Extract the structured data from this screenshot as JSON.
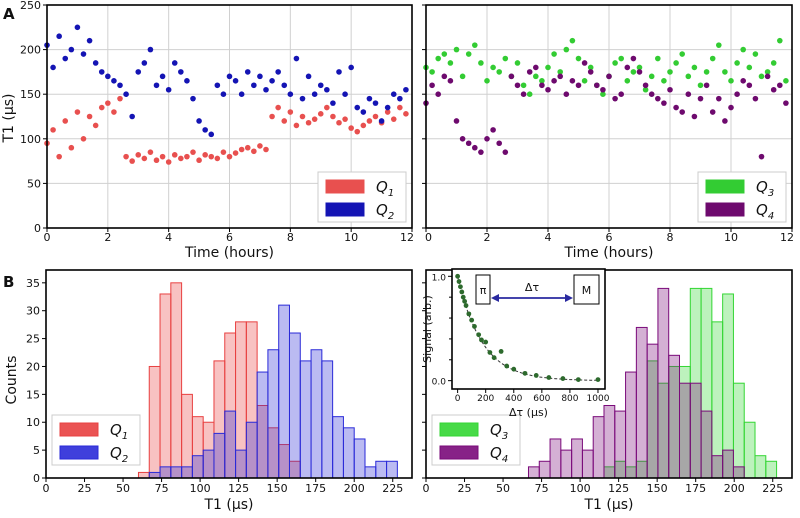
{
  "panel_labels": {
    "a": "A",
    "b": "B"
  },
  "chart_data": [
    {
      "type": "scatter",
      "panel": "A-left",
      "xlabel": "Time (hours)",
      "ylabel": "T1 (μs)",
      "xlim": [
        0,
        12
      ],
      "ylim": [
        0,
        250
      ],
      "xticks": [
        "0",
        "2",
        "4",
        "6",
        "8",
        "10",
        "12"
      ],
      "yticks": [
        "0",
        "50",
        "100",
        "150",
        "200",
        "250"
      ],
      "grid": true,
      "legend": "bottom-right",
      "time_hours": [
        0,
        0.2,
        0.4,
        0.6,
        0.8,
        1.0,
        1.2,
        1.4,
        1.6,
        1.8,
        2.0,
        2.2,
        2.4,
        2.6,
        2.8,
        3.0,
        3.2,
        3.4,
        3.6,
        3.8,
        4.0,
        4.2,
        4.4,
        4.6,
        4.8,
        5.0,
        5.2,
        5.4,
        5.6,
        5.8,
        6.0,
        6.2,
        6.4,
        6.6,
        6.8,
        7.0,
        7.2,
        7.4,
        7.6,
        7.8,
        8.0,
        8.2,
        8.4,
        8.6,
        8.8,
        9.0,
        9.2,
        9.4,
        9.6,
        9.8,
        10.0,
        10.2,
        10.4,
        10.6,
        10.8,
        11.0,
        11.2,
        11.4,
        11.6,
        11.8
      ],
      "series": [
        {
          "name": "Q1",
          "color": "#e8504f",
          "values": [
            95,
            110,
            80,
            120,
            90,
            130,
            100,
            125,
            115,
            135,
            140,
            130,
            145,
            80,
            75,
            82,
            78,
            85,
            76,
            80,
            74,
            82,
            78,
            80,
            85,
            76,
            82,
            80,
            78,
            85,
            80,
            84,
            88,
            90,
            86,
            92,
            88,
            125,
            135,
            120,
            130,
            115,
            125,
            118,
            122,
            128,
            135,
            125,
            118,
            122,
            112,
            108,
            115,
            120,
            125,
            118,
            130,
            122,
            135,
            128
          ]
        },
        {
          "name": "Q2",
          "color": "#1414b4",
          "values": [
            205,
            180,
            215,
            190,
            200,
            225,
            195,
            210,
            185,
            175,
            170,
            165,
            160,
            150,
            125,
            175,
            185,
            200,
            160,
            170,
            155,
            185,
            175,
            165,
            145,
            120,
            110,
            105,
            160,
            150,
            170,
            165,
            150,
            175,
            160,
            170,
            155,
            165,
            175,
            160,
            150,
            190,
            145,
            170,
            150,
            160,
            155,
            140,
            175,
            150,
            180,
            135,
            130,
            145,
            140,
            120,
            135,
            150,
            145,
            155
          ]
        }
      ]
    },
    {
      "type": "scatter",
      "panel": "A-right",
      "xlabel": "Time (hours)",
      "xlim": [
        0,
        12
      ],
      "ylim": [
        0,
        250
      ],
      "xticks": [
        "0",
        "2",
        "4",
        "6",
        "8",
        "10",
        "12"
      ],
      "grid": true,
      "legend": "bottom-right",
      "time_hours": [
        0,
        0.2,
        0.4,
        0.6,
        0.8,
        1.0,
        1.2,
        1.4,
        1.6,
        1.8,
        2.0,
        2.2,
        2.4,
        2.6,
        2.8,
        3.0,
        3.2,
        3.4,
        3.6,
        3.8,
        4.0,
        4.2,
        4.4,
        4.6,
        4.8,
        5.0,
        5.2,
        5.4,
        5.6,
        5.8,
        6.0,
        6.2,
        6.4,
        6.6,
        6.8,
        7.0,
        7.2,
        7.4,
        7.6,
        7.8,
        8.0,
        8.2,
        8.4,
        8.6,
        8.8,
        9.0,
        9.2,
        9.4,
        9.6,
        9.8,
        10.0,
        10.2,
        10.4,
        10.6,
        10.8,
        11.0,
        11.2,
        11.4,
        11.6,
        11.8
      ],
      "series": [
        {
          "name": "Q3",
          "color": "#33cc33",
          "values": [
            180,
            175,
            190,
            195,
            185,
            200,
            170,
            195,
            205,
            185,
            165,
            180,
            175,
            190,
            170,
            185,
            160,
            150,
            170,
            165,
            180,
            195,
            175,
            200,
            210,
            190,
            165,
            180,
            160,
            150,
            170,
            185,
            190,
            165,
            175,
            180,
            155,
            170,
            190,
            165,
            175,
            185,
            195,
            170,
            180,
            160,
            175,
            190,
            205,
            175,
            165,
            185,
            200,
            180,
            195,
            170,
            175,
            185,
            210,
            165
          ]
        },
        {
          "name": "Q4",
          "color": "#6e0a6e",
          "values": [
            140,
            160,
            150,
            170,
            165,
            120,
            100,
            95,
            90,
            85,
            100,
            110,
            95,
            85,
            170,
            160,
            150,
            175,
            180,
            160,
            155,
            165,
            170,
            150,
            165,
            160,
            185,
            175,
            160,
            155,
            170,
            145,
            150,
            180,
            190,
            175,
            160,
            150,
            145,
            140,
            155,
            135,
            130,
            150,
            125,
            145,
            160,
            130,
            145,
            120,
            135,
            150,
            165,
            160,
            145,
            80,
            170,
            155,
            160,
            140
          ]
        }
      ]
    },
    {
      "type": "bar",
      "subtype": "histogram",
      "panel": "B-left",
      "xlabel": "T1 (μs)",
      "ylabel": "Counts",
      "xlim": [
        0,
        237.5
      ],
      "ylim": [
        0,
        37.3
      ],
      "xticks": [
        "0",
        "25",
        "50",
        "75",
        "100",
        "125",
        "150",
        "175",
        "200",
        "225"
      ],
      "yticks": [
        "0",
        "5",
        "10",
        "15",
        "20",
        "25",
        "30",
        "35"
      ],
      "bin_start": 60,
      "bin_width": 7,
      "legend": "bottom-left",
      "series": [
        {
          "name": "Q1",
          "color": "#e84040",
          "values": [
            1,
            20,
            33,
            35,
            15,
            11,
            10,
            21,
            26,
            28,
            28,
            13,
            9,
            6,
            3
          ]
        },
        {
          "name": "Q2",
          "color": "#2a2ad8",
          "values": [
            0,
            1,
            2,
            2,
            2,
            4,
            5,
            8,
            12,
            5,
            10,
            19,
            23,
            31,
            26,
            21,
            23,
            21,
            11,
            9,
            7,
            2,
            3,
            3
          ]
        }
      ]
    },
    {
      "type": "bar",
      "subtype": "histogram",
      "panel": "B-right",
      "xlabel": "T1 (μs)",
      "xlim": [
        0,
        237.5
      ],
      "ylim": [
        0,
        37.3
      ],
      "xticks": [
        "0",
        "25",
        "50",
        "75",
        "100",
        "125",
        "150",
        "175",
        "200",
        "225"
      ],
      "bin_start": 66.5,
      "bin_width": 7,
      "legend": "bottom-left",
      "series": [
        {
          "name": "Q3",
          "color": "#33d633",
          "values": [
            0,
            0,
            0,
            0,
            0,
            0,
            0,
            2,
            3,
            2,
            3,
            21,
            17,
            20,
            20,
            34,
            34,
            28,
            33,
            17,
            10,
            4,
            3
          ]
        },
        {
          "name": "Q4",
          "color": "#7a0a7a",
          "values": [
            2,
            3,
            7,
            5,
            7,
            5,
            11,
            13,
            12,
            19,
            27,
            24,
            34,
            22,
            17,
            17,
            12,
            4,
            5,
            2
          ]
        }
      ]
    },
    {
      "type": "scatter",
      "panel": "B-right-inset",
      "xlabel": "Δτ  (μs)",
      "ylabel": "Signal (arb.)",
      "xlim": [
        -40,
        1050
      ],
      "ylim": [
        -0.08,
        1.07
      ],
      "xticks": [
        "0",
        "200",
        "400",
        "600",
        "800",
        "1000"
      ],
      "yticks": [
        "0.0",
        "1.0"
      ],
      "fit": "exponential decay (dashed)",
      "pulse_diagram": {
        "pulse": "π",
        "delay": "Δτ",
        "measure": "M"
      },
      "series": [
        {
          "color": "#2d6a2d",
          "x": [
            0,
            10,
            20,
            30,
            40,
            50,
            60,
            80,
            100,
            120,
            150,
            170,
            200,
            230,
            260,
            310,
            350,
            400,
            480,
            560,
            650,
            750,
            860,
            1000
          ],
          "y": [
            1.0,
            0.95,
            0.9,
            0.85,
            0.8,
            0.76,
            0.72,
            0.64,
            0.58,
            0.52,
            0.44,
            0.39,
            0.37,
            0.27,
            0.22,
            0.28,
            0.14,
            0.11,
            0.07,
            0.05,
            0.03,
            0.02,
            0.01,
            0.01
          ]
        }
      ]
    }
  ]
}
